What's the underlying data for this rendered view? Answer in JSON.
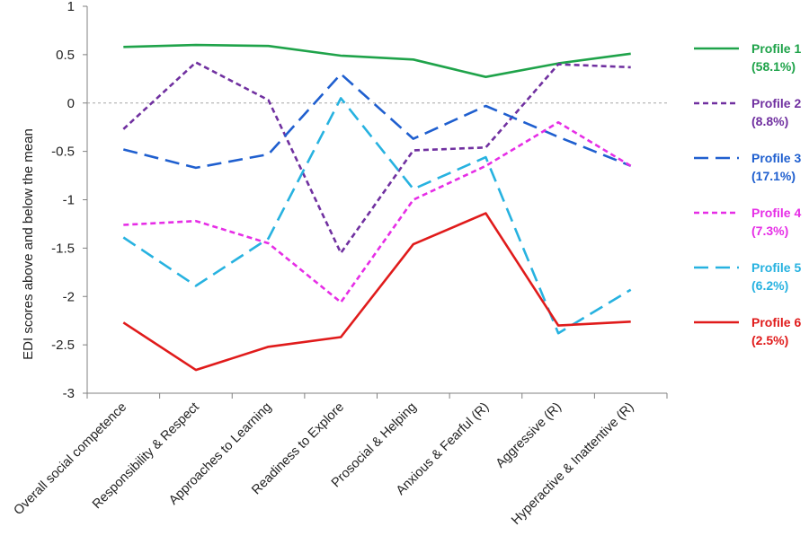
{
  "chart_data": {
    "type": "line",
    "ylabel": "EDI scores above and below the mean",
    "xlabel": "",
    "ylim": [
      -3,
      1
    ],
    "yticks": [
      {
        "value": 1,
        "label": "1"
      },
      {
        "value": 0.5,
        "label": "0.5"
      },
      {
        "value": 0,
        "label": "0"
      },
      {
        "value": -0.5,
        "label": "-0.5"
      },
      {
        "value": -1,
        "label": "-1"
      },
      {
        "value": -1.5,
        "label": "-1.5"
      },
      {
        "value": -2,
        "label": "-2"
      },
      {
        "value": -2.5,
        "label": "-2.5"
      },
      {
        "value": -3,
        "label": "-3"
      }
    ],
    "reference_line": 0,
    "categories": [
      "Overall social competence",
      "Responsibility & Respect",
      "Approaches to Learning",
      "Readiness to Explore",
      "Prosocial & Helping",
      "Anxious & Fearful (R)",
      "Aggressive (R)",
      "Hyperactive & Inattentive (R)"
    ],
    "series": [
      {
        "name": "Profile 1",
        "pct": "(58.1%)",
        "color": "#1fa34a",
        "dash": "solid",
        "values": [
          0.58,
          0.6,
          0.59,
          0.49,
          0.45,
          0.27,
          0.41,
          0.51
        ]
      },
      {
        "name": "Profile 2",
        "pct": "(8.8%)",
        "color": "#7030a0",
        "dash": "short",
        "values": [
          -0.27,
          0.42,
          0.03,
          -1.55,
          -0.49,
          -0.46,
          0.4,
          0.37
        ]
      },
      {
        "name": "Profile 3",
        "pct": "(17.1%)",
        "color": "#1f5fcf",
        "dash": "long",
        "values": [
          -0.48,
          -0.67,
          -0.53,
          0.3,
          -0.37,
          -0.03,
          -0.35,
          -0.65
        ]
      },
      {
        "name": "Profile 4",
        "pct": "(7.3%)",
        "color": "#e62ee6",
        "dash": "short",
        "values": [
          -1.26,
          -1.22,
          -1.45,
          -2.06,
          -1.0,
          -0.65,
          -0.2,
          -0.65
        ]
      },
      {
        "name": "Profile 5",
        "pct": "(6.2%)",
        "color": "#27b2e0",
        "dash": "long",
        "values": [
          -1.39,
          -1.89,
          -1.4,
          0.05,
          -0.89,
          -0.56,
          -2.38,
          -1.93
        ]
      },
      {
        "name": "Profile 6",
        "pct": "(2.5%)",
        "color": "#e01b1b",
        "dash": "solid",
        "values": [
          -2.27,
          -2.76,
          -2.52,
          -2.42,
          -1.46,
          -1.14,
          -2.3,
          -2.26
        ]
      }
    ],
    "legend_position": "right",
    "grid": false
  }
}
